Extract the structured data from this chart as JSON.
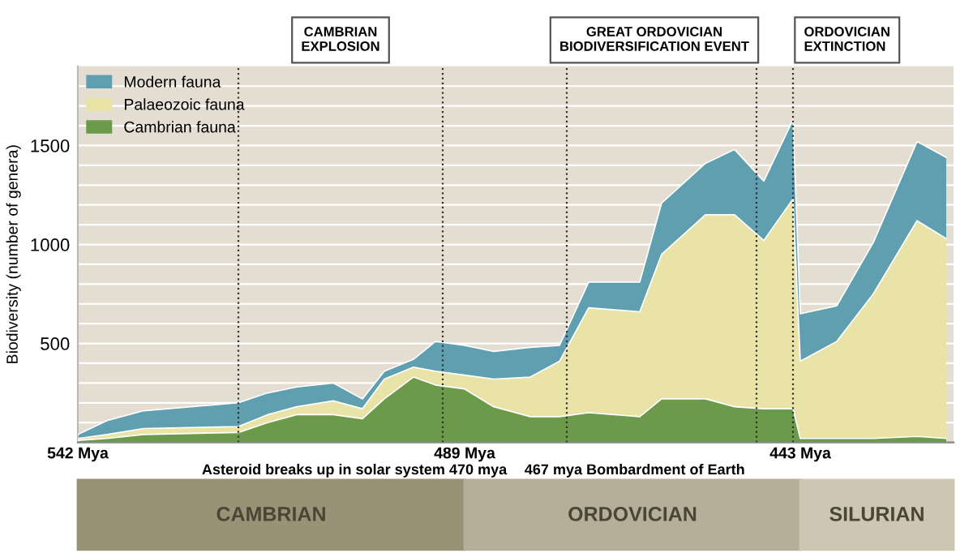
{
  "chart_data": {
    "type": "area",
    "stacked": true,
    "ylabel": "Biodiversity (number of genera)",
    "x": [
      542,
      538,
      533,
      520,
      516,
      512,
      507,
      503,
      500,
      496,
      493,
      489,
      485,
      480,
      476,
      472,
      465,
      462,
      456,
      452,
      448,
      444,
      443,
      438,
      433,
      427,
      423
    ],
    "series": [
      {
        "name": "Cambrian fauna",
        "color": "#6a9a4a",
        "values": [
          10,
          20,
          40,
          50,
          100,
          140,
          140,
          120,
          220,
          330,
          290,
          270,
          180,
          130,
          130,
          150,
          130,
          220,
          220,
          180,
          170,
          170,
          20,
          20,
          20,
          30,
          20
        ]
      },
      {
        "name": "Palaeozoic fauna",
        "color": "#e9e3a8",
        "values": [
          10,
          20,
          30,
          30,
          40,
          40,
          70,
          50,
          100,
          50,
          70,
          70,
          140,
          200,
          280,
          530,
          530,
          730,
          930,
          970,
          850,
          1060,
          390,
          490,
          730,
          1090,
          1010
        ]
      },
      {
        "name": "Modern fauna",
        "color": "#5f9fb0",
        "values": [
          20,
          70,
          90,
          120,
          110,
          100,
          90,
          50,
          40,
          40,
          150,
          150,
          140,
          150,
          80,
          130,
          150,
          260,
          260,
          330,
          300,
          400,
          240,
          180,
          260,
          400,
          410
        ]
      }
    ],
    "xlim": [
      542,
      422
    ],
    "xticks": [
      {
        "value": 542,
        "label": "542 Mya"
      },
      {
        "value": 489,
        "label": "489 Mya"
      },
      {
        "value": 443,
        "label": "443 Mya"
      }
    ],
    "ylim": [
      0,
      1900
    ],
    "yticks": [
      {
        "value": 100,
        "label": null
      },
      {
        "value": 200,
        "label": null
      },
      {
        "value": 300,
        "label": null
      },
      {
        "value": 400,
        "label": null
      },
      500,
      {
        "value": 600,
        "label": null
      },
      {
        "value": 700,
        "label": null
      },
      {
        "value": 800,
        "label": null
      },
      {
        "value": 900,
        "label": null
      },
      1000,
      {
        "value": 1100,
        "label": null
      },
      {
        "value": 1200,
        "label": null
      },
      {
        "value": 1300,
        "label": null
      },
      {
        "value": 1400,
        "label": null
      },
      1500,
      {
        "value": 1600,
        "label": null
      },
      {
        "value": 1700,
        "label": null
      },
      {
        "value": 1800,
        "label": null
      }
    ],
    "grid": "y",
    "legend": "top left",
    "ref_lines": [
      {
        "axis": "x",
        "value": 520,
        "line_style": "dotted",
        "color": "#333333"
      },
      {
        "axis": "x",
        "value": 492,
        "line_style": "dotted",
        "color": "#333333"
      },
      {
        "axis": "x",
        "value": 475,
        "line_style": "dotted",
        "color": "#333333"
      },
      {
        "axis": "x",
        "value": 449,
        "line_style": "dotted",
        "color": "#333333"
      },
      {
        "axis": "x",
        "value": 444,
        "line_style": "dotted",
        "color": "#333333"
      }
    ],
    "annotations": [
      "CAMBRIAN\nEXPLOSION",
      "GREAT ORDOVICIAN\nBIODIVERSIFICATION EVENT",
      "ORDOVICIAN\nEXTINCTION",
      "Asteroid breaks up in solar system 470 mya",
      "467 mya Bombardment of Earth",
      "CAMBRIAN",
      "ORDOVICIAN",
      "SILURIAN"
    ]
  }
}
